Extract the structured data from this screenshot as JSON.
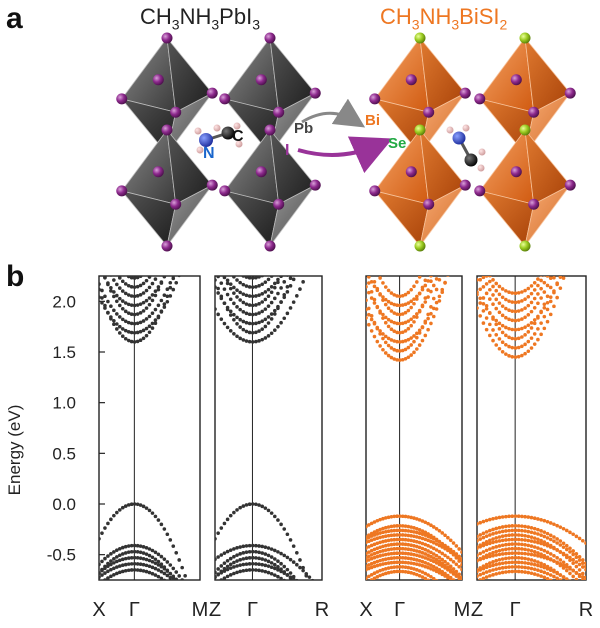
{
  "panels": {
    "a": {
      "label": "a"
    },
    "b": {
      "label": "b"
    }
  },
  "structures": {
    "left": {
      "formula_parts": [
        "CH",
        "3",
        "NH",
        "3",
        "PbI",
        "3"
      ],
      "color": "#222222",
      "atom_labels": {
        "nitrogen": "N",
        "carbon": "C"
      }
    },
    "right": {
      "formula_parts": [
        "CH",
        "3",
        "NH",
        "3",
        "BiSI",
        "2"
      ],
      "color": "#ee7722"
    },
    "substitution": {
      "pb_label": "Pb",
      "bi_label": "Bi",
      "i_label": "I",
      "se_label": "Se",
      "bi_color": "#ee7722",
      "se_color": "#22aa44",
      "i_color": "#993399"
    }
  },
  "chart_data": {
    "type": "scatter",
    "ylabel": "Energy (eV)",
    "ylim": [
      -0.75,
      2.25
    ],
    "yticks": [
      "2.0",
      "1.5",
      "1.0",
      "0.5",
      "0.0",
      "-0.5"
    ],
    "ytick_values": [
      2.0,
      1.5,
      1.0,
      0.5,
      0.0,
      -0.5
    ],
    "subplots": [
      {
        "name": "MAPbI3-X-Gamma-M",
        "color": "#333333",
        "kpoints": [
          "X",
          "Γ",
          "M"
        ],
        "vbm": 0.0,
        "cbm": 1.6,
        "gamma_fraction": 0.35
      },
      {
        "name": "MAPbI3-Z-Gamma-R",
        "color": "#333333",
        "kpoints": [
          "Z",
          "Γ",
          "R"
        ],
        "vbm": 0.0,
        "cbm": 1.6,
        "gamma_fraction": 0.35
      },
      {
        "name": "MABiSI2-X-Gamma-M",
        "color": "#ee7722",
        "kpoints": [
          "X",
          "Γ",
          "M"
        ],
        "vbm": 0.0,
        "cbm": 1.42,
        "gamma_fraction": 0.35
      },
      {
        "name": "MABiSI2-Z-Gamma-R",
        "color": "#ee7722",
        "kpoints": [
          "Z",
          "Γ",
          "R"
        ],
        "vbm": 0.0,
        "cbm": 1.45,
        "gamma_fraction": 0.35
      }
    ]
  }
}
